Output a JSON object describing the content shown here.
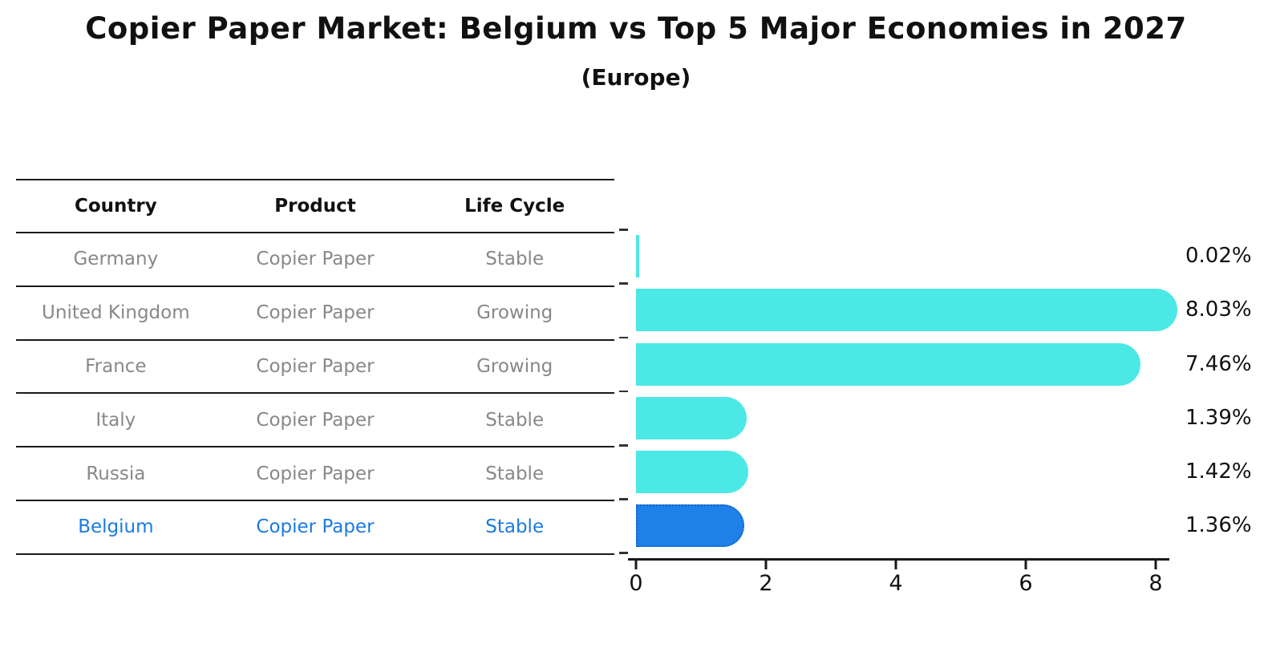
{
  "title": "Copier Paper Market: Belgium vs Top 5 Major Economies in 2027",
  "subtitle": "(Europe)",
  "table": {
    "headers": [
      "Country",
      "Product",
      "Life Cycle"
    ],
    "rows": [
      {
        "country": "Germany",
        "product": "Copier Paper",
        "life_cycle": "Stable",
        "highlight": false
      },
      {
        "country": "United Kingdom",
        "product": "Copier Paper",
        "life_cycle": "Growing",
        "highlight": false
      },
      {
        "country": "France",
        "product": "Copier Paper",
        "life_cycle": "Growing",
        "highlight": false
      },
      {
        "country": "Italy",
        "product": "Copier Paper",
        "life_cycle": "Stable",
        "highlight": false
      },
      {
        "country": "Russia",
        "product": "Copier Paper",
        "life_cycle": "Stable",
        "highlight": false
      },
      {
        "country": "Belgium",
        "product": "Copier Paper",
        "life_cycle": "Stable",
        "highlight": true
      }
    ]
  },
  "chart_data": {
    "type": "bar",
    "orientation": "horizontal",
    "title": "Copier Paper Market: Belgium vs Top 5 Major Economies in 2027 (Europe)",
    "categories": [
      "Germany",
      "United Kingdom",
      "France",
      "Italy",
      "Russia",
      "Belgium"
    ],
    "values": [
      0.02,
      8.03,
      7.46,
      1.39,
      1.42,
      1.36
    ],
    "value_labels": [
      "0.02%",
      "8.03%",
      "7.46%",
      "1.39%",
      "1.42%",
      "1.36%"
    ],
    "value_unit": "%",
    "xticks": [
      0,
      2,
      4,
      6,
      8
    ],
    "xlim": [
      0,
      8.3
    ],
    "grid": false,
    "legend": false,
    "highlight_category": "Belgium"
  },
  "colors": {
    "background": "#ffffff",
    "bar": "#4be8e5",
    "highlight": "#1e80e8",
    "highlight_border": "#1565cc",
    "table_text": "#888888",
    "header_text": "#111111",
    "accent_text": "#1b7ae0",
    "line": "#1a1a1a"
  }
}
